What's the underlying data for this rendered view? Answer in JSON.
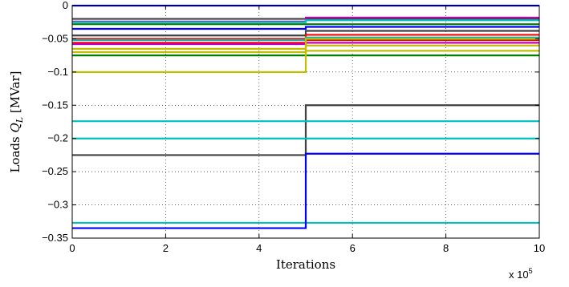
{
  "chart_data": {
    "type": "line",
    "title": "",
    "xlabel": "Iterations",
    "ylabel": "Loads Q_L [MVar]",
    "ylabel_parts": {
      "prefix": "Loads ",
      "symbol": "Q",
      "subscript": "L",
      "unit": " [MVar]"
    },
    "x_multiplier_label": "x 10",
    "x_multiplier_exponent": "5",
    "xlim": [
      0,
      1000000
    ],
    "ylim": [
      -0.35,
      0
    ],
    "x_ticks": [
      0,
      200000,
      400000,
      600000,
      800000,
      1000000
    ],
    "x_tick_labels": [
      "0",
      "2",
      "4",
      "6",
      "8",
      "10"
    ],
    "y_ticks": [
      -0.35,
      -0.3,
      -0.25,
      -0.2,
      -0.15,
      -0.1,
      -0.05,
      0
    ],
    "y_tick_labels": [
      "−0.35",
      "−0.3",
      "−0.25",
      "−0.2",
      "−0.15",
      "−0.1",
      "−0.05",
      "0"
    ],
    "grid": true,
    "step_x": 500000,
    "series": [
      {
        "color": "#0000ff",
        "before": 0,
        "after": 0
      },
      {
        "color": "#404040",
        "before": -0.02,
        "after": -0.02
      },
      {
        "color": "#bf00bf",
        "before": -0.024,
        "after": -0.018
      },
      {
        "color": "#00bfbf",
        "before": -0.025,
        "after": -0.022
      },
      {
        "color": "#008000",
        "before": -0.028,
        "after": -0.028
      },
      {
        "color": "#0000ff",
        "before": -0.035,
        "after": -0.032
      },
      {
        "color": "#404040",
        "before": -0.045,
        "after": -0.038
      },
      {
        "color": "#ff0000",
        "before": -0.05,
        "after": -0.044
      },
      {
        "color": "#00bfbf",
        "before": -0.052,
        "after": -0.048
      },
      {
        "color": "#ff0000",
        "before": -0.056,
        "after": -0.052
      },
      {
        "color": "#bf00bf",
        "before": -0.058,
        "after": -0.056
      },
      {
        "color": "#bfbf00",
        "before": -0.065,
        "after": -0.06
      },
      {
        "color": "#bfbf00",
        "before": -0.07,
        "after": -0.068
      },
      {
        "color": "#008000",
        "before": -0.075,
        "after": -0.075
      },
      {
        "color": "#bfbf00",
        "before": -0.1,
        "after": -0.05
      },
      {
        "color": "#404040",
        "before": -0.225,
        "after": -0.15
      },
      {
        "color": "#00bfbf",
        "before": -0.174,
        "after": -0.174
      },
      {
        "color": "#00bfbf",
        "before": -0.2,
        "after": -0.2
      },
      {
        "color": "#00bfbf",
        "before": -0.327,
        "after": -0.327
      },
      {
        "color": "#0000ff",
        "before": -0.335,
        "after": -0.223
      }
    ]
  }
}
